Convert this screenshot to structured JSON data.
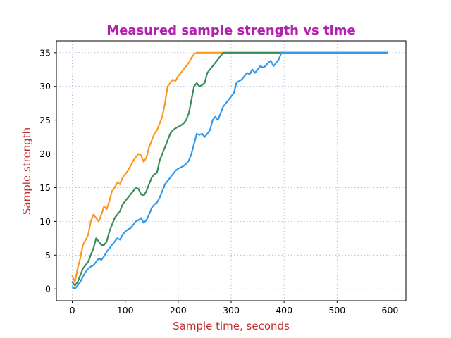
{
  "chart_data": {
    "type": "line",
    "title": "Measured sample strength vs time",
    "xlabel": "Sample time, seconds",
    "ylabel": "Sample strength",
    "xlim": [
      -30,
      630
    ],
    "ylim": [
      -1.75,
      36.75
    ],
    "xticks": [
      0,
      100,
      200,
      300,
      400,
      500,
      600
    ],
    "yticks": [
      0,
      5,
      10,
      15,
      20,
      25,
      30,
      35
    ],
    "grid": true,
    "colors": {
      "title": "#b021b0",
      "axis_label": "#c03030"
    },
    "series": [
      {
        "color": "#ff9620",
        "x": [
          0,
          5,
          10,
          15,
          20,
          25,
          30,
          35,
          40,
          45,
          50,
          55,
          60,
          65,
          70,
          75,
          80,
          85,
          90,
          95,
          100,
          105,
          110,
          115,
          120,
          125,
          130,
          135,
          140,
          145,
          150,
          155,
          160,
          165,
          170,
          175,
          180,
          185,
          190,
          195,
          200,
          205,
          210,
          215,
          220,
          225,
          230,
          235,
          240,
          245,
          250,
          300,
          350,
          400,
          450,
          500,
          550,
          595
        ],
        "y": [
          2.0,
          1.0,
          3.0,
          4.5,
          6.5,
          7.2,
          8.0,
          10.0,
          11.0,
          10.5,
          10.0,
          11.0,
          12.2,
          11.8,
          13.0,
          14.5,
          15.0,
          15.8,
          15.5,
          16.5,
          17.0,
          17.5,
          18.2,
          19.0,
          19.5,
          20.0,
          19.8,
          18.8,
          19.5,
          21.0,
          22.0,
          23.0,
          23.5,
          24.5,
          25.5,
          27.5,
          30.0,
          30.5,
          31.0,
          30.8,
          31.5,
          32.0,
          32.5,
          33.0,
          33.5,
          34.2,
          34.8,
          35.0,
          35.0,
          35.0,
          35.0,
          35.0,
          35.0,
          35.0,
          35.0,
          35.0,
          35.0,
          35.0
        ]
      },
      {
        "color": "#3a8c5c",
        "x": [
          0,
          5,
          10,
          15,
          20,
          25,
          30,
          35,
          40,
          45,
          50,
          55,
          60,
          65,
          70,
          75,
          80,
          85,
          90,
          95,
          100,
          105,
          110,
          115,
          120,
          125,
          130,
          135,
          140,
          145,
          150,
          155,
          160,
          165,
          170,
          175,
          180,
          185,
          190,
          195,
          200,
          205,
          210,
          215,
          220,
          225,
          230,
          235,
          240,
          245,
          250,
          255,
          260,
          265,
          270,
          275,
          280,
          285,
          290,
          350,
          400,
          450,
          500,
          550,
          595
        ],
        "y": [
          1.0,
          0.5,
          1.0,
          2.0,
          3.0,
          3.5,
          4.0,
          5.0,
          6.0,
          7.5,
          7.0,
          6.5,
          6.5,
          7.0,
          8.5,
          9.5,
          10.5,
          11.0,
          11.5,
          12.5,
          13.0,
          13.5,
          14.0,
          14.5,
          15.0,
          14.8,
          14.0,
          13.8,
          14.5,
          15.5,
          16.5,
          17.0,
          17.2,
          19.0,
          20.0,
          21.0,
          22.0,
          23.0,
          23.5,
          23.8,
          24.0,
          24.2,
          24.5,
          25.0,
          26.0,
          28.0,
          30.0,
          30.5,
          30.0,
          30.2,
          30.5,
          32.0,
          32.5,
          33.0,
          33.5,
          34.0,
          34.5,
          35.0,
          35.0,
          35.0,
          35.0,
          35.0,
          35.0,
          35.0,
          35.0
        ]
      },
      {
        "color": "#3399ee",
        "x": [
          0,
          5,
          10,
          15,
          20,
          25,
          30,
          35,
          40,
          45,
          50,
          55,
          60,
          65,
          70,
          75,
          80,
          85,
          90,
          95,
          100,
          105,
          110,
          115,
          120,
          125,
          130,
          135,
          140,
          145,
          150,
          155,
          160,
          165,
          170,
          175,
          180,
          185,
          190,
          195,
          200,
          205,
          210,
          215,
          220,
          225,
          230,
          235,
          240,
          245,
          250,
          255,
          260,
          265,
          270,
          275,
          280,
          285,
          290,
          295,
          300,
          305,
          310,
          315,
          320,
          325,
          330,
          335,
          340,
          345,
          350,
          355,
          360,
          365,
          370,
          375,
          380,
          385,
          390,
          395,
          400,
          450,
          500,
          550,
          595
        ],
        "y": [
          0.3,
          0.0,
          0.5,
          1.0,
          1.8,
          2.5,
          3.0,
          3.3,
          3.5,
          4.0,
          4.5,
          4.3,
          4.8,
          5.5,
          6.0,
          6.5,
          7.0,
          7.5,
          7.3,
          8.0,
          8.5,
          8.8,
          9.0,
          9.5,
          10.0,
          10.2,
          10.5,
          9.8,
          10.2,
          11.0,
          12.0,
          12.5,
          12.8,
          13.5,
          14.5,
          15.5,
          16.0,
          16.5,
          17.0,
          17.5,
          17.8,
          18.0,
          18.2,
          18.5,
          19.0,
          20.0,
          21.5,
          23.0,
          22.8,
          23.0,
          22.5,
          23.0,
          23.5,
          25.0,
          25.5,
          25.0,
          26.0,
          27.0,
          27.5,
          28.0,
          28.5,
          29.0,
          30.5,
          30.8,
          31.0,
          31.5,
          32.0,
          31.8,
          32.5,
          32.0,
          32.5,
          33.0,
          32.8,
          33.0,
          33.5,
          33.8,
          33.0,
          33.5,
          34.0,
          35.0,
          35.0,
          35.0,
          35.0,
          35.0,
          35.0
        ]
      }
    ]
  }
}
